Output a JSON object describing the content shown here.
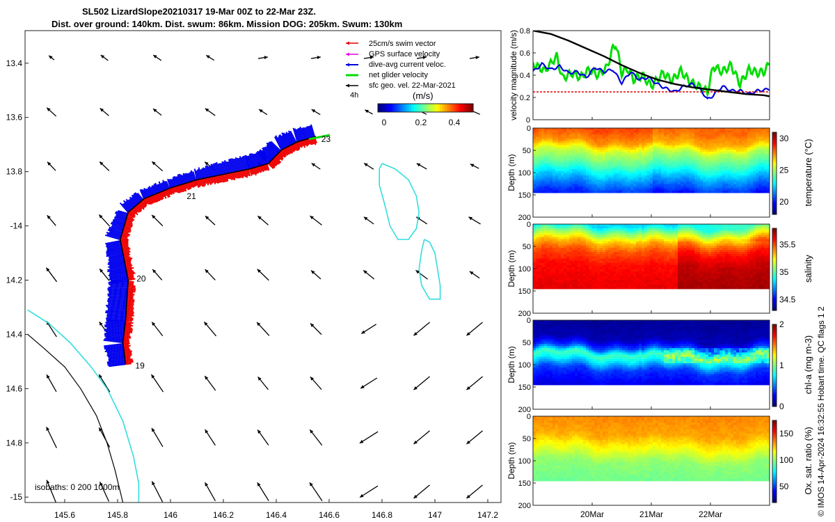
{
  "title_line1": "SL502 LizardSlope20210317 19-Mar 00Z to 22-Mar 23Z.",
  "title_line2": "Dist. over ground: 140km. Dist. swum: 86km. Mission DOG: 205km. Swum: 130km",
  "credit": "© IMOS 14-Apr-2024 16:32:55 Hobart time. QC flags 1  2",
  "chart_data": [
    {
      "id": "map",
      "type": "scatter",
      "title": "SL502 LizardSlope20210317 19-Mar 00Z to 22-Mar 23Z.",
      "xlim": [
        145.45,
        147.25
      ],
      "ylim": [
        -15.02,
        -13.28
      ],
      "x_ticks": [
        145.6,
        145.8,
        146,
        146.2,
        146.4,
        146.6,
        146.8,
        147,
        147.2
      ],
      "x_tick_labels": [
        "145.6",
        "145.8",
        "146",
        "146.2",
        "146.4",
        "146.6",
        "146.8",
        "147",
        "147.2"
      ],
      "y_ticks": [
        -13.4,
        -13.6,
        -13.8,
        -14,
        -14.2,
        -14.4,
        -14.6,
        -14.8,
        -15
      ],
      "y_tick_labels": [
        "13.4",
        "13.6",
        "13.8",
        "-14",
        "14.2",
        "14.4",
        "14.6",
        "14.8",
        "-15"
      ],
      "legend": [
        "25cm/s swim vector",
        "GPS surface velocity",
        "dive-avg current veloc.",
        "net glider velocity",
        "sfc geo. vel. 22-Mar-2021"
      ],
      "legend_colors": [
        "#e00000",
        "#dd00dd",
        "#0000dd",
        "#00dd00",
        "#000000"
      ],
      "legend_position": "top-right",
      "colorbar_label": "(m/s)",
      "colorbar_ticks": [
        "0",
        "0.2",
        "0.4"
      ],
      "colorbar_range": [
        0,
        0.5
      ],
      "interval_label": "4h",
      "day_labels": [
        "19",
        "20",
        "21",
        "23"
      ],
      "track": [
        [
          145.83,
          -14.51
        ],
        [
          145.82,
          -14.43
        ],
        [
          145.83,
          -14.35
        ],
        [
          145.84,
          -14.2
        ],
        [
          145.81,
          -14.05
        ],
        [
          145.84,
          -13.95
        ],
        [
          145.9,
          -13.9
        ],
        [
          146.0,
          -13.86
        ],
        [
          146.1,
          -13.83
        ],
        [
          146.2,
          -13.81
        ],
        [
          146.3,
          -13.79
        ],
        [
          146.37,
          -13.77
        ],
        [
          146.42,
          -13.72
        ],
        [
          146.48,
          -13.69
        ],
        [
          146.55,
          -13.67
        ]
      ],
      "track_label_points": [
        [
          145.83,
          -14.51
        ],
        [
          145.84,
          -14.19
        ],
        [
          146.03,
          -13.88
        ],
        [
          146.56,
          -13.67
        ]
      ],
      "isobath_label": "isobaths: 0   200  1000m",
      "isobath_0": [
        [
          145.46,
          -14.4
        ],
        [
          145.52,
          -14.45
        ],
        [
          145.6,
          -14.52
        ],
        [
          145.66,
          -14.6
        ],
        [
          145.72,
          -14.7
        ],
        [
          145.76,
          -14.8
        ],
        [
          145.79,
          -14.9
        ],
        [
          145.82,
          -15.02
        ]
      ],
      "isobath_200": [
        [
          145.46,
          -14.31
        ],
        [
          145.54,
          -14.36
        ],
        [
          145.62,
          -14.43
        ],
        [
          145.7,
          -14.52
        ],
        [
          145.76,
          -14.6
        ],
        [
          145.82,
          -14.72
        ],
        [
          145.86,
          -14.85
        ],
        [
          145.88,
          -14.95
        ],
        [
          145.88,
          -15.02
        ]
      ],
      "isobath_1000_reef1": [
        [
          146.8,
          -13.77
        ],
        [
          146.85,
          -13.79
        ],
        [
          146.9,
          -13.83
        ],
        [
          146.93,
          -13.89
        ],
        [
          146.94,
          -13.95
        ],
        [
          146.93,
          -14.01
        ],
        [
          146.9,
          -14.05
        ],
        [
          146.86,
          -14.05
        ],
        [
          146.83,
          -14.0
        ],
        [
          146.81,
          -13.92
        ],
        [
          146.79,
          -13.85
        ],
        [
          146.79,
          -13.79
        ],
        [
          146.8,
          -13.77
        ]
      ],
      "isobath_1000_reef2": [
        [
          146.96,
          -14.05
        ],
        [
          146.98,
          -14.06
        ],
        [
          147.0,
          -14.1
        ],
        [
          147.01,
          -14.16
        ],
        [
          147.02,
          -14.22
        ],
        [
          147.02,
          -14.27
        ],
        [
          146.98,
          -14.27
        ],
        [
          146.95,
          -14.22
        ],
        [
          146.94,
          -14.16
        ],
        [
          146.95,
          -14.09
        ],
        [
          146.96,
          -14.05
        ]
      ]
    },
    {
      "id": "velocity",
      "type": "line",
      "ylabel": "velocity magnitude (m/s)",
      "ylim": [
        0,
        0.8
      ],
      "yticks": [
        0,
        0.2,
        0.4,
        0.6,
        0.8
      ],
      "ytick_labels": [
        "0",
        "0.2",
        "0.4",
        "0.6",
        "0.8"
      ],
      "xlim": [
        19,
        23
      ],
      "series": [
        {
          "name": "net glider velocity",
          "color": "#00dd00",
          "x": [
            19.0,
            19.2,
            19.4,
            19.5,
            19.65,
            19.8,
            19.95,
            20.1,
            20.25,
            20.35,
            20.4,
            20.5,
            20.6,
            20.7,
            20.85,
            21.0,
            21.2,
            21.35,
            21.5,
            21.65,
            21.8,
            21.95,
            22.05,
            22.2,
            22.35,
            22.5,
            22.65,
            22.8,
            22.9,
            23.0
          ],
          "y": [
            0.5,
            0.44,
            0.57,
            0.37,
            0.42,
            0.38,
            0.45,
            0.4,
            0.47,
            0.64,
            0.68,
            0.42,
            0.46,
            0.36,
            0.4,
            0.3,
            0.42,
            0.35,
            0.44,
            0.34,
            0.3,
            0.25,
            0.48,
            0.43,
            0.49,
            0.32,
            0.45,
            0.42,
            0.43,
            0.5
          ]
        },
        {
          "name": "dive-avg current veloc.",
          "color": "#0000dd",
          "x": [
            19.0,
            19.15,
            19.3,
            19.45,
            19.6,
            19.75,
            19.9,
            20.05,
            20.2,
            20.35,
            20.5,
            20.65,
            20.8,
            20.95,
            21.1,
            21.25,
            21.4,
            21.55,
            21.7,
            21.85,
            21.95,
            22.05,
            22.2,
            22.35,
            22.5,
            22.65,
            22.8,
            22.95,
            23.0
          ],
          "y": [
            0.43,
            0.5,
            0.45,
            0.48,
            0.42,
            0.43,
            0.38,
            0.47,
            0.43,
            0.45,
            0.33,
            0.43,
            0.36,
            0.38,
            0.32,
            0.28,
            0.25,
            0.3,
            0.32,
            0.26,
            0.18,
            0.22,
            0.3,
            0.26,
            0.26,
            0.23,
            0.26,
            0.27,
            0.28
          ]
        },
        {
          "name": "25cm/s swim vector",
          "color": "#e00000",
          "x": [
            19,
            23
          ],
          "y": [
            0.25,
            0.25
          ]
        },
        {
          "name": "sfc geo. vel. 22-Mar-2021",
          "color": "#000000",
          "x": [
            19.0,
            19.3,
            19.6,
            19.9,
            20.2,
            20.5,
            20.8,
            21.1,
            21.4,
            21.7,
            22.0,
            22.3,
            22.6,
            22.9,
            23.0
          ],
          "y": [
            0.8,
            0.77,
            0.71,
            0.64,
            0.57,
            0.49,
            0.42,
            0.36,
            0.32,
            0.29,
            0.27,
            0.25,
            0.23,
            0.22,
            0.21
          ]
        }
      ]
    },
    {
      "id": "temperature",
      "type": "heatmap",
      "ylabel": "Depth (m)",
      "colorbar_label": "temperature (°C)",
      "clim": [
        18,
        31
      ],
      "colorbar_ticks": [
        "30",
        "25",
        "20"
      ],
      "ylim": [
        200,
        0
      ],
      "ytick_labels": [
        "0",
        "50",
        "100",
        "150",
        "200"
      ],
      "max_depth": 145,
      "profile_depths": [
        0,
        30,
        50,
        80,
        110,
        145
      ],
      "profile_values": [
        28.5,
        27.5,
        25.5,
        24,
        22,
        20
      ]
    },
    {
      "id": "salinity",
      "type": "heatmap",
      "ylabel": "Depth (m)",
      "colorbar_label": "salinity",
      "clim": [
        34.3,
        35.8
      ],
      "colorbar_ticks": [
        "35.5",
        "35",
        "34.5"
      ],
      "ylim": [
        200,
        0
      ],
      "ytick_labels": [
        "0",
        "50",
        "100",
        "150",
        "200"
      ],
      "max_depth": 145,
      "profile_depths": [
        0,
        20,
        40,
        60,
        90,
        145
      ],
      "profile_values": [
        34.8,
        35.1,
        35.35,
        35.5,
        35.6,
        35.65
      ]
    },
    {
      "id": "chla",
      "type": "heatmap",
      "ylabel": "Depth (m)",
      "colorbar_label": "chl-a (mg m-3)",
      "clim": [
        0,
        2
      ],
      "colorbar_ticks": [
        "2",
        "1",
        "0"
      ],
      "ylim": [
        200,
        0
      ],
      "ytick_labels": [
        "0",
        "50",
        "100",
        "150",
        "200"
      ],
      "max_depth": 145,
      "profile_depths": [
        0,
        40,
        60,
        75,
        90,
        110,
        145
      ],
      "profile_values": [
        0.05,
        0.1,
        0.4,
        0.9,
        0.7,
        0.35,
        0.2
      ]
    },
    {
      "id": "oxygen",
      "type": "heatmap",
      "ylabel": "Depth (m)",
      "colorbar_label": "Ox. sat. ratio (%)",
      "clim": [
        20,
        175
      ],
      "colorbar_ticks": [
        "150",
        "100",
        "50"
      ],
      "ylim": [
        200,
        0
      ],
      "ytick_labels": [
        "0",
        "50",
        "100",
        "150",
        "200"
      ],
      "max_depth": 145,
      "profile_depths": [
        0,
        40,
        70,
        100,
        145
      ],
      "profile_values": [
        135,
        130,
        115,
        100,
        95
      ]
    }
  ],
  "time_axis": {
    "ticks": [
      20,
      21,
      22
    ],
    "labels": [
      "20Mar",
      "21Mar",
      "22Mar"
    ]
  }
}
